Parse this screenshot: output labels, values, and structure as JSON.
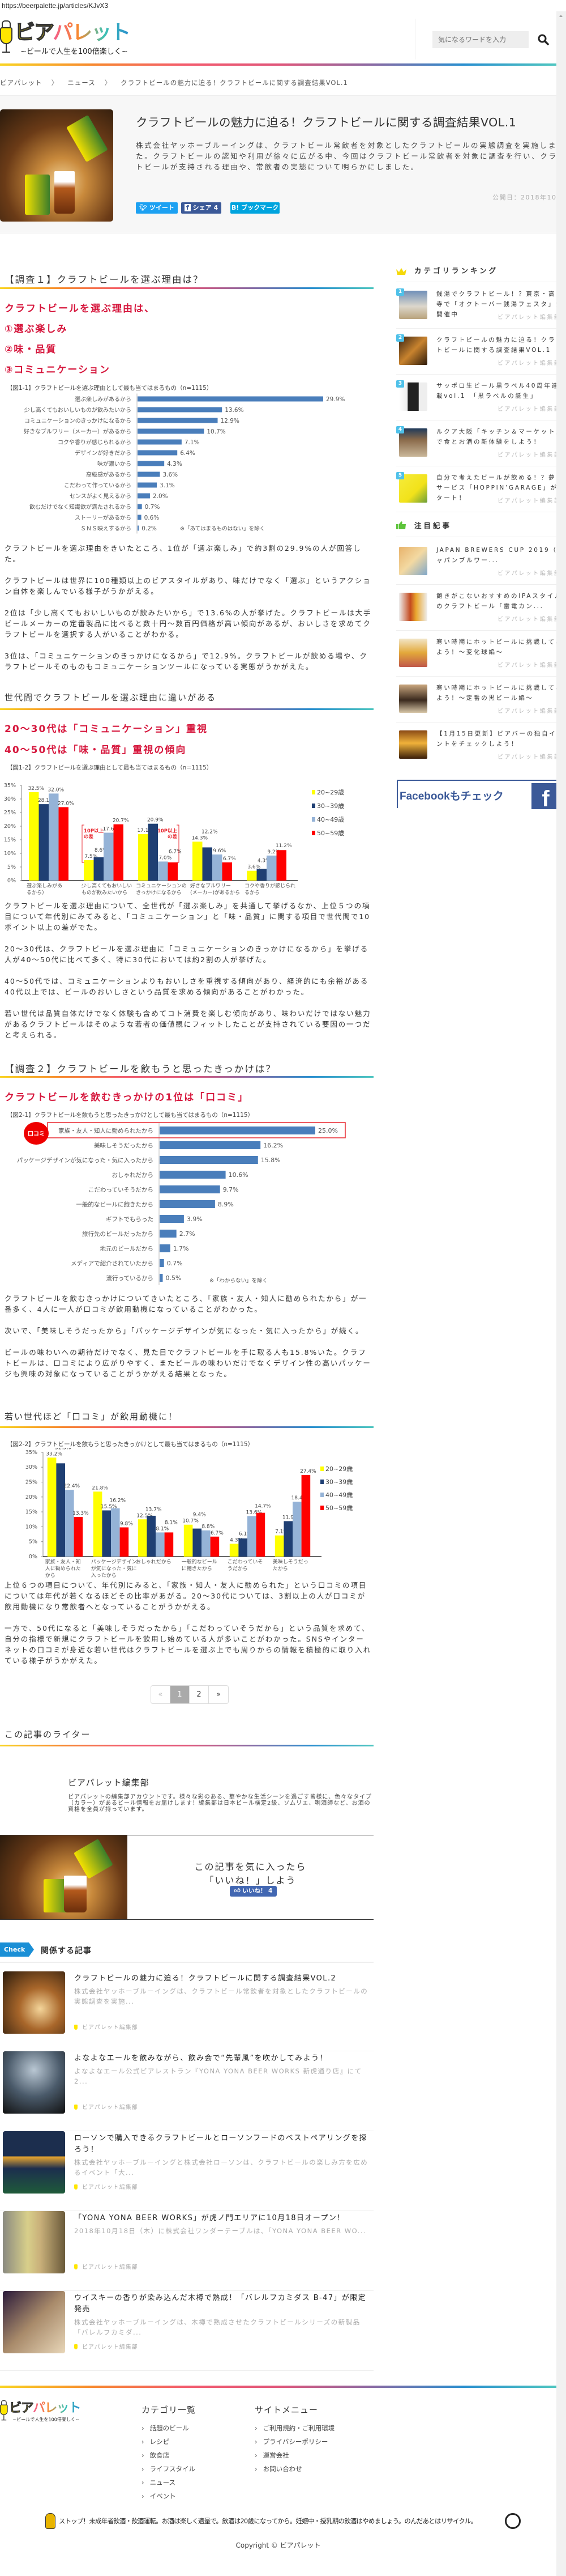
{
  "browser": {
    "url": "https://beerpalette.jp/articles/KJvX3"
  },
  "header": {
    "logo_main_a": "ビア",
    "logo_main_b": "パレット",
    "logo_tagline": "~ビールで人生を100倍楽しく~",
    "search_placeholder": "気になるワードを入力"
  },
  "breadcrumb": [
    "ビアパレット",
    "ニュース",
    "クラフトビールの魅力に迫る！クラフトビールに関する調査結果VOL.1"
  ],
  "breadcrumb_sep": "〉",
  "article": {
    "title": "クラフトビールの魅力に迫る！クラフトビールに関する調査結果VOL.1",
    "summary": "株式会社ヤッホーブルーイングは、クラフトビール常飲者を対象としたクラフトビールの実態調査を実施しました。クラフトビールの認知や利用が徐々に広がる中、今回はクラフトビール常飲者を対象に調査を行い、クラフトビールが支持される理由や、常飲者の実態について明らかにしました。",
    "published": "公開日：2018年10月26日",
    "share": {
      "tweet": "ツイート",
      "facebook": "シェア",
      "facebook_count": "4",
      "hatena": "B! ブックマーク"
    },
    "colors": {
      "accent_red": "#d6173d",
      "twitter": "#1da1f2",
      "facebook": "#3b5998",
      "hatena": "#00a4de"
    }
  },
  "section1": {
    "heading": "【調査１】クラフトビールを選ぶ理由は？",
    "highlights": [
      "クラフトビールを選ぶ理由は、",
      "①選ぶ楽しみ",
      "②味・品質",
      "③コミュニケーション"
    ],
    "paragraphs": [
      "クラフトビールを選ぶ理由をきいたところ、1位が「選ぶ楽しみ」で約3割の29.9%の人が回答した。",
      "クラフトビールは世界に100種類以上のビアスタイルがあり、味だけでなく「選ぶ」というアクション自体を楽しんでいる様子がうかがえる。",
      "2位は「少し高くてもおいしいものが飲みたいから」で13.6%の人が挙げた。クラフトビールは大手ビールメーカーの定番製品に比べると数十円～数百円価格が高い傾向があるが、おいしさを求めてクラフトビールを選択する人がいることがわかる。",
      "3位は、「コミュニケーションのきっかけになるから」で12.9%。クラフトビールが飲める場や、クラフトビールそのものもコミュニケーションツールになっている実態がうかがえた。"
    ],
    "sub_heading": "世代間でクラフトビールを選ぶ理由に違いがある",
    "sub_highlights": [
      "20～30代は「コミュニケーション」重視",
      "40～50代は「味・品質」重視の傾向"
    ],
    "sub_paragraphs": [
      "クラフトビールを選ぶ理由について、全世代が「選ぶ楽しみ」を共通して挙げるなか、上位５つの項目について年代別にみてみると、「コミュニケーション」と「味・品質」に関する項目で世代間で10ポイント以上の差がでた。",
      "20～30代は、クラフトビールを選ぶ理由に「コミュニケーションのきっかけになるから」を挙げる人が40～50代に比べて多く、特に30代においては約2割の人が挙げた。",
      "40～50代では、コミュニケーションよりもおいしさを重視する傾向があり、経済的にも余裕がある40代以上では、ビールのおいしさという品質を求める傾向があることがわかった。",
      "若い世代は品質自体だけでなく体験も含めてコト消費を楽しむ傾向があり、味わいだけではない魅力があるクラフトビールはそのような若者の価値観にフィットしたことが支持されている要因の一つだと考えられる。"
    ]
  },
  "section2": {
    "heading": "【調査２】クラフトビールを飲もうと思ったきっかけは？",
    "highlight": "クラフトビールを飲むきっかけの1位は「口コミ」",
    "paragraphs": [
      "クラフトビールを飲むきっかけについてきいたところ、「家族・友人・知人に勧められたから」が一番多く、4人に一人が口コミが飲用動機になっていることがわかった。",
      "次いで、「美味しそうだったから」「パッケージデザインが気になった・気に入ったから」が続く。",
      "ビールの味わいへの期待だけでなく、見た目でクラフトビールを手に取る人も15.8%いた。クラフトビールは、口コミにより広がりやすく、またビールの味わいだけでなくデザイン性の高いパッケージも興味の対象になっていることがうかがえる結果となった。"
    ],
    "sub_heading": "若い世代ほど「口コミ」が飲用動機に！",
    "sub_paragraphs": [
      "上位６つの項目について、年代別にみると、「家族・知人・友人に勧められた」という口コミの項目については年代が若くなるほどその比率があがる。20～30代については、3割以上の人が口コミが飲用動機になり常飲者へとなっていることがうかがえる。",
      "一方で、50代になると「美味しそうだったから」「こだわっていそうだから」という品質を求めて、自分の指標で新規にクラフトビールを飲用し始めている人が多いことがわかった。SNSやインターネットの口コミが身近な若い世代はクラフトビールを選ぶ上でも周りからの情報を積極的に取り入れている様子がうかがえた。"
    ]
  },
  "chart_data": [
    {
      "type": "bar",
      "orientation": "horizontal",
      "title": "【図1-1】クラフトビールを選ぶ理由として最も当てはまるもの（n=1115）",
      "categories": [
        "選ぶ楽しみがあるから",
        "少し高くてもおいしいものが飲みたいから",
        "コミュニケーションのきっかけになるから",
        "好きなブルワリー（メーカー）があるから",
        "コクや香りが感じられるから",
        "デザインが好きだから",
        "味が濃いから",
        "高級感があるから",
        "こだわって作っているから",
        "センスがよく見えるから",
        "飲むだけでなく知識欲が満たされるから",
        "ストーリーがあるから",
        "ＳＮＳ映えするから"
      ],
      "values": [
        29.9,
        13.6,
        12.9,
        10.7,
        7.1,
        6.4,
        4.3,
        3.6,
        3.1,
        2.0,
        0.7,
        0.6,
        0.2
      ],
      "value_suffix": "%",
      "note": "※「あてはまるものはない」を除く",
      "color": "#4a7ebb"
    },
    {
      "type": "bar",
      "orientation": "vertical-grouped",
      "title": "【図1-2】クラフトビールを選ぶ理由として最も当てはまるもの（n=1115）",
      "categories": [
        [
          "選ぶ楽しみがあ",
          "るから）"
        ],
        [
          "少し高くてもおいしい",
          "ものが飲みたいから"
        ],
        [
          "コミュニケーションの",
          "きっかけになるから"
        ],
        [
          "好きなブルワリー",
          "(メーカー)があるから"
        ],
        [
          "コクや香りが感じられ",
          "るから"
        ]
      ],
      "series": [
        {
          "name": "20~29歳",
          "color": "#ffff00",
          "values": [
            32.5,
            7.5,
            17.1,
            14.3,
            3.6
          ]
        },
        {
          "name": "30~39歳",
          "color": "#1f3f73",
          "values": [
            28.1,
            8.6,
            20.9,
            12.2,
            4.3
          ]
        },
        {
          "name": "40~49歳",
          "color": "#95b3d7",
          "values": [
            32.0,
            17.6,
            7.0,
            9.6,
            9.2
          ]
        },
        {
          "name": "50~59歳",
          "color": "#ff0000",
          "values": [
            27.0,
            20.7,
            6.7,
            6.7,
            11.2
          ]
        }
      ],
      "ylim": [
        0,
        35
      ],
      "yticks": [
        "0%",
        "5%",
        "10%",
        "15%",
        "20%",
        "25%",
        "30%",
        "35%"
      ],
      "annotations": [
        "10P以上の差",
        "10P以上の差"
      ],
      "legend": "right"
    },
    {
      "type": "bar",
      "orientation": "horizontal",
      "title": "【図2-1】クラフトビールを飲もうと思ったきっかけとして最も当てはまるもの（n=1115）",
      "categories": [
        "家族・友人・知人に勧められたから",
        "美味しそうだったから",
        "パッケージデザインが気になった・気に入ったから",
        "おしゃれだから",
        "こだわっていそうだから",
        "一般的なビールに飽きたから",
        "ギフトでもらった",
        "旅行先のビールだったから",
        "地元のビールだから",
        "メディアで紹介されていたから",
        "流行っているから"
      ],
      "values": [
        25.0,
        16.2,
        15.8,
        10.6,
        9.7,
        8.9,
        3.9,
        2.7,
        1.7,
        0.7,
        0.5
      ],
      "value_suffix": "%",
      "highlight_badge": "口コミ",
      "note": "※「わからない」を除く",
      "color": "#4a7ebb"
    },
    {
      "type": "bar",
      "orientation": "vertical-grouped",
      "title": "【図2-2】クラフトビールを飲もうと思ったきっかけとして最も当てはまるもの（n=1115）",
      "categories": [
        [
          "家族・友人・知",
          "人に勧められた",
          "から"
        ],
        [
          "パッケージデザイン",
          "が気になった・気に",
          "入ったから"
        ],
        [
          "おしゃれだから"
        ],
        [
          "一般的なビール",
          "に飽きたから"
        ],
        [
          "こだわっていそ",
          "うだから"
        ],
        [
          "美味しそうだっ",
          "たから"
        ]
      ],
      "series": [
        {
          "name": "20~29歳",
          "color": "#ffff00",
          "values": [
            33.2,
            21.8,
            12.5,
            10.7,
            4.3,
            7.1
          ]
        },
        {
          "name": "30~39歳",
          "color": "#1f3f73",
          "values": [
            31.3,
            15.5,
            13.7,
            9.4,
            6.1,
            11.9
          ]
        },
        {
          "name": "40~49歳",
          "color": "#95b3d7",
          "values": [
            22.4,
            16.2,
            8.1,
            8.8,
            13.6,
            18.4
          ]
        },
        {
          "name": "50~59歳",
          "color": "#ff0000",
          "values": [
            13.3,
            9.8,
            8.1,
            6.7,
            14.7,
            27.4
          ]
        }
      ],
      "ylim": [
        0,
        35
      ],
      "yticks": [
        "0%",
        "5%",
        "10%",
        "15%",
        "20%",
        "25%",
        "30%",
        "35%"
      ],
      "legend": "right"
    }
  ],
  "pagination": {
    "prev": "«",
    "pages": [
      "1",
      "2"
    ],
    "current": "1",
    "next": "»"
  },
  "writer": {
    "heading": "この記事のライター",
    "name": "ビアパレット編集部",
    "bio": "ビアパレットの編集部アカウントです。様々な彩のある、華やかな生活シーンを過ごす皆様に、色々なタイプ（カラー）があるビール情報をお届けします！編集部は日本ビール検定2級、ソムリエ、唎酒師など、お酒の資格を全員が持っています。"
  },
  "like_box": {
    "line1": "この記事を気に入ったら",
    "line2": "「いいね！」しよう",
    "button": "いいね！",
    "count": "4"
  },
  "related": {
    "badge": "Check",
    "heading": "関係する記事",
    "items": [
      {
        "title": "クラフトビールの魅力に迫る！クラフトビールに関する調査結果VOL.2",
        "desc": "株式会社ヤッホーブルーイングは、クラフトビール常飲者を対象としたクラフトビールの実態調査を実施...",
        "author": "ビアパレット編集部"
      },
      {
        "title": "よなよなエールを飲みながら、飲み会で“先輩風”を吹かしてみよう！",
        "desc": "よなよなエール公式ビアレストラン『YONA YONA BEER WORKS 新虎通り店』にて2...",
        "author": "ビアパレット編集部"
      },
      {
        "title": "ローソンで購入できるクラフトビールとローソンフードのベストペアリングを探ろう！",
        "desc": "株式会社ヤッホーブルーイングと株式会社ローソンは、クラフトビールの楽しみ方を広めるイベント「大...",
        "author": "ビアパレット編集部"
      },
      {
        "title": "「YONA YONA BEER WORKS」が虎ノ門エリアに10月18日オープン！",
        "desc": "2018年10月18日（木）に株式会社ワンダーテーブルは、「YONA YONA BEER WO...",
        "author": "ビアパレット編集部"
      },
      {
        "title": "ウイスキーの香りが染み込んだ木樽で熟成！「バレルフカミダス B-47」が限定発売",
        "desc": "株式会社ヤッホーブルーイングは、木樽で熟成させたクラフトビールシリーズの新製品「バレルフカミダ...",
        "author": "ビアパレット編集部"
      }
    ]
  },
  "sidebar": {
    "ranking_heading": "カテゴリランキング",
    "ranking": [
      {
        "rank": "1",
        "title": "銭湯でクラフトビール！？東京・高円寺で「オクトーバー銭湯フェスタ」が開催中",
        "author": "ビアパレット編集部"
      },
      {
        "rank": "2",
        "title": "クラフトビールの魅力に迫る！クラフトビールに関する調査結果VOL.1",
        "author": "ビアパレット編集部"
      },
      {
        "rank": "3",
        "title": "サッポロ生ビール黒ラベル40周年連載vol.1　「黒ラベルの誕生」",
        "author": "ビアパレット編集部"
      },
      {
        "rank": "4",
        "title": "ルクア大阪「キッチン＆マーケット」で食とお酒の新体験をしよう！",
        "author": "ビアパレット編集部"
      },
      {
        "rank": "5",
        "title": "自分で考えたビールが飲める！？夢のサービス「HOPPIN’GARAGE」がスタート！",
        "author": "ビアパレット編集部"
      }
    ],
    "featured_heading": "注目記事",
    "featured": [
      {
        "title": "JAPAN BREWERS CUP 2019（ジャパンブルワー...",
        "author": "ビアパレット編集部"
      },
      {
        "title": "飽きがこないおすすめのIPAスタイルのクラフトビール「雷電カン...",
        "author": "ビアパレット編集部"
      },
      {
        "title": "寒い時期にホットビールに挑戦してみよう！～変化球編～",
        "author": "ビアパレット編集部"
      },
      {
        "title": "寒い時期にホットビールに挑戦してみよう！～定番の黒ビール編～",
        "author": "ビアパレット編集部"
      },
      {
        "title": "【1月15日更新】ビアバーの独自イベントをチェックしよう！",
        "author": "ビアパレット編集部"
      }
    ],
    "facebook_banner": "Facebookもチェック"
  },
  "footer": {
    "categories_heading": "カテゴリ一覧",
    "categories": [
      "話題のビール",
      "レシピ",
      "飲食店",
      "ライフスタイル",
      "ニュース",
      "イベント"
    ],
    "menu_heading": "サイトメニュー",
    "menu": [
      "ご利用規約・ご利用環境",
      "プライバシーポリシー",
      "運営会社",
      "お問い合わせ"
    ],
    "warning": "ストップ！未成年者飲酒・飲酒運転。お酒は楽しく適量で。飲酒は20歳になってから。妊娠中・授乳期の飲酒はやめましょう。のんだあとはリサイクル。",
    "copyright": "Copyright © ビアパレット"
  }
}
